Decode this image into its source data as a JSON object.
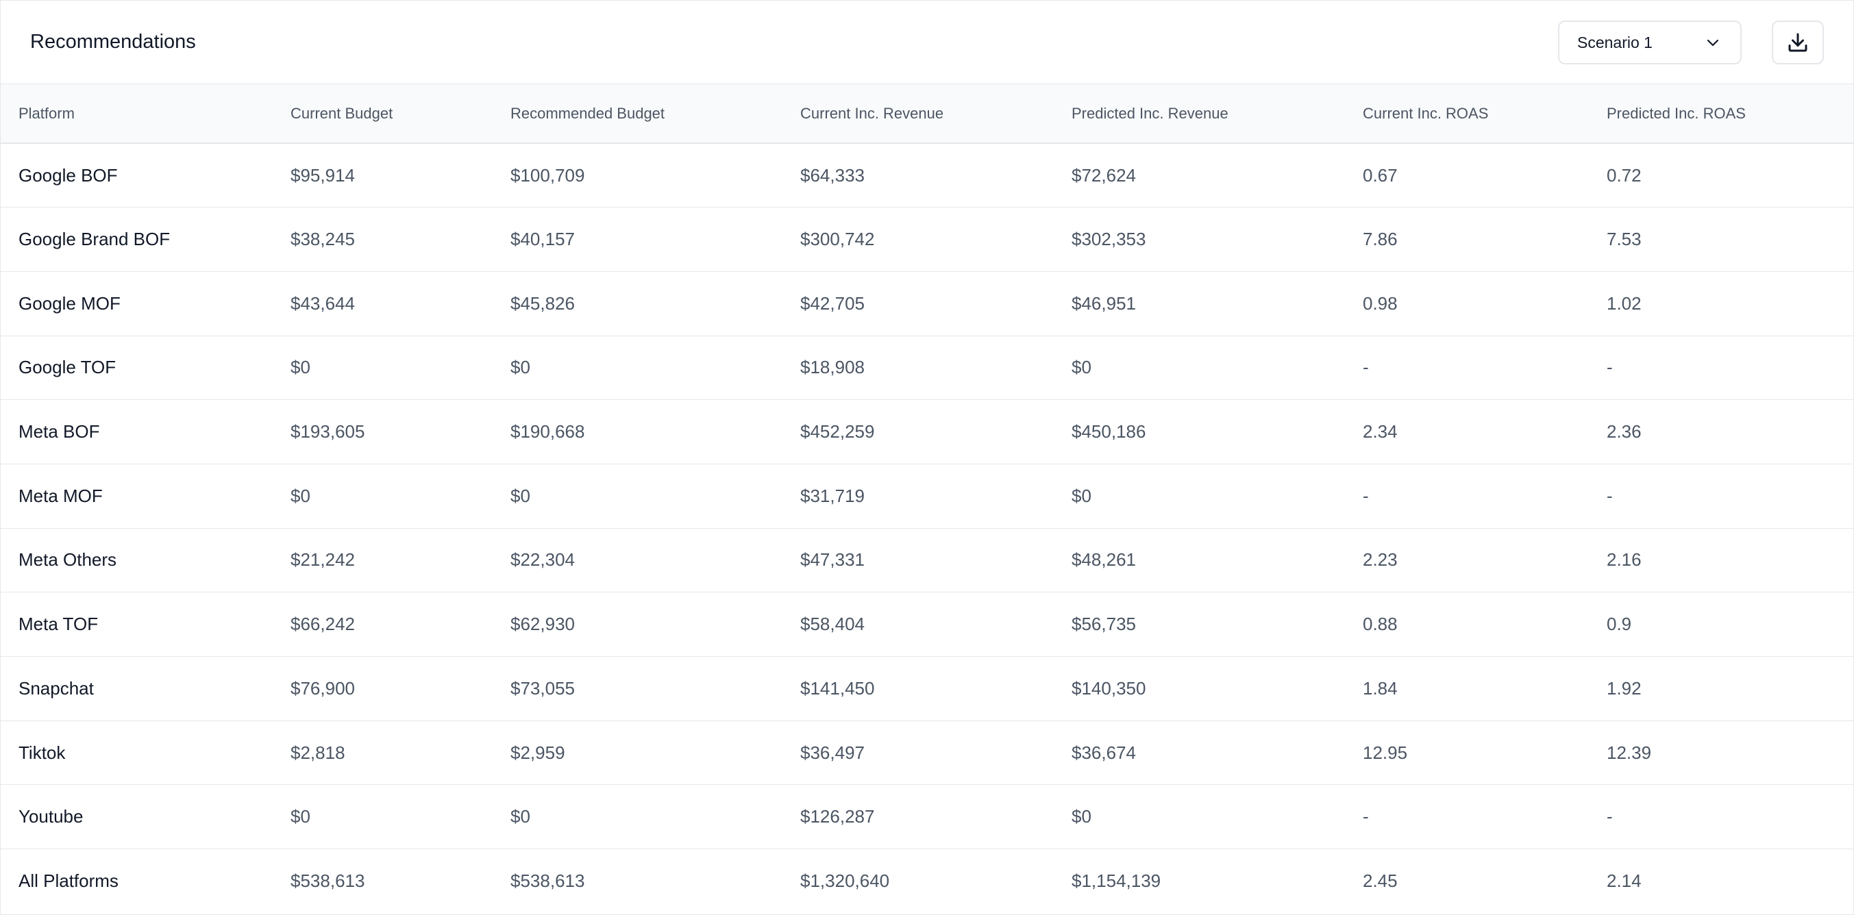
{
  "header": {
    "title": "Recommendations",
    "scenario_select": {
      "value": "Scenario 1",
      "icon": "chevron-down-icon"
    },
    "download_button": {
      "icon": "download-icon"
    }
  },
  "table": {
    "columns": [
      "Platform",
      "Current Budget",
      "Recommended Budget",
      "Current Inc. Revenue",
      "Predicted Inc. Revenue",
      "Current Inc. ROAS",
      "Predicted Inc. ROAS"
    ],
    "rows": [
      [
        "Google BOF",
        "$95,914",
        "$100,709",
        "$64,333",
        "$72,624",
        "0.67",
        "0.72"
      ],
      [
        "Google Brand BOF",
        "$38,245",
        "$40,157",
        "$300,742",
        "$302,353",
        "7.86",
        "7.53"
      ],
      [
        "Google MOF",
        "$43,644",
        "$45,826",
        "$42,705",
        "$46,951",
        "0.98",
        "1.02"
      ],
      [
        "Google TOF",
        "$0",
        "$0",
        "$18,908",
        "$0",
        "-",
        "-"
      ],
      [
        "Meta BOF",
        "$193,605",
        "$190,668",
        "$452,259",
        "$450,186",
        "2.34",
        "2.36"
      ],
      [
        "Meta MOF",
        "$0",
        "$0",
        "$31,719",
        "$0",
        "-",
        "-"
      ],
      [
        "Meta Others",
        "$21,242",
        "$22,304",
        "$47,331",
        "$48,261",
        "2.23",
        "2.16"
      ],
      [
        "Meta TOF",
        "$66,242",
        "$62,930",
        "$58,404",
        "$56,735",
        "0.88",
        "0.9"
      ],
      [
        "Snapchat",
        "$76,900",
        "$73,055",
        "$141,450",
        "$140,350",
        "1.84",
        "1.92"
      ],
      [
        "Tiktok",
        "$2,818",
        "$2,959",
        "$36,497",
        "$36,674",
        "12.95",
        "12.39"
      ],
      [
        "Youtube",
        "$0",
        "$0",
        "$126,287",
        "$0",
        "-",
        "-"
      ],
      [
        "All Platforms",
        "$538,613",
        "$538,613",
        "$1,320,640",
        "$1,154,139",
        "2.45",
        "2.14"
      ]
    ]
  },
  "colors": {
    "border": "#e5e7eb",
    "header_bg": "#f9fafb",
    "text_primary": "#111827",
    "text_secondary": "#4b5563"
  }
}
